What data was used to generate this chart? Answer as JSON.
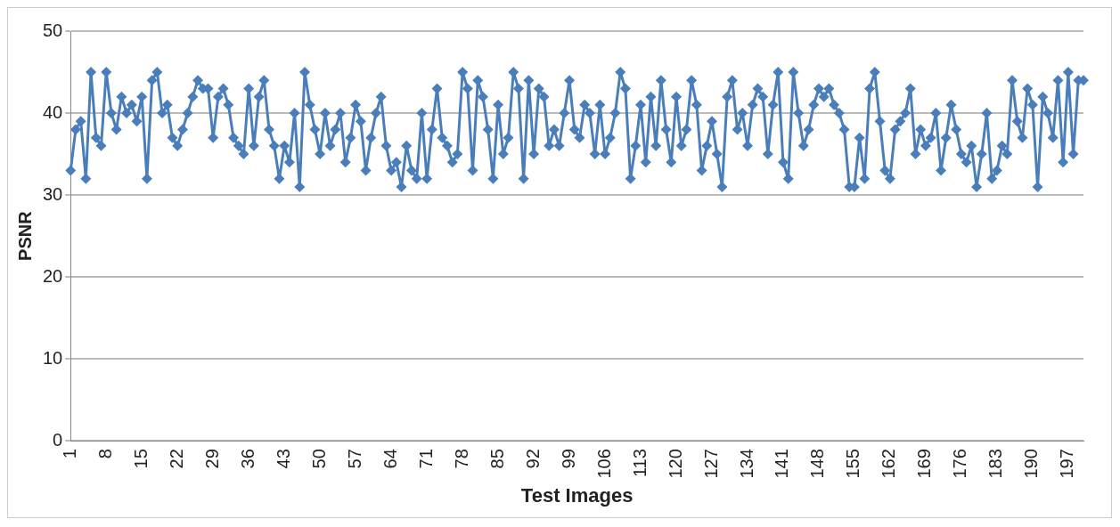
{
  "chart_data": {
    "type": "line",
    "xlabel": "Test Images",
    "ylabel": "PSNR",
    "categories": [
      "1",
      null,
      null,
      null,
      null,
      null,
      null,
      "8",
      null,
      null,
      null,
      null,
      null,
      null,
      "15",
      null,
      null,
      null,
      null,
      null,
      null,
      "22",
      null,
      null,
      null,
      null,
      null,
      null,
      "29",
      null,
      null,
      null,
      null,
      null,
      null,
      "36",
      null,
      null,
      null,
      null,
      null,
      null,
      "43",
      null,
      null,
      null,
      null,
      null,
      null,
      "50",
      null,
      null,
      null,
      null,
      null,
      null,
      "57",
      null,
      null,
      null,
      null,
      null,
      null,
      "64",
      null,
      null,
      null,
      null,
      null,
      null,
      "71",
      null,
      null,
      null,
      null,
      null,
      null,
      "78",
      null,
      null,
      null,
      null,
      null,
      null,
      "85",
      null,
      null,
      null,
      null,
      null,
      null,
      "92",
      null,
      null,
      null,
      null,
      null,
      null,
      "99",
      null,
      null,
      null,
      null,
      null,
      null,
      "106",
      null,
      null,
      null,
      null,
      null,
      null,
      "113",
      null,
      null,
      null,
      null,
      null,
      null,
      "120",
      null,
      null,
      null,
      null,
      null,
      null,
      "127",
      null,
      null,
      null,
      null,
      null,
      null,
      "134",
      null,
      null,
      null,
      null,
      null,
      null,
      "141",
      null,
      null,
      null,
      null,
      null,
      null,
      "148",
      null,
      null,
      null,
      null,
      null,
      null,
      "155",
      null,
      null,
      null,
      null,
      null,
      null,
      "162",
      null,
      null,
      null,
      null,
      null,
      null,
      "169",
      null,
      null,
      null,
      null,
      null,
      null,
      "176",
      null,
      null,
      null,
      null,
      null,
      null,
      "183",
      null,
      null,
      null,
      null,
      null,
      null,
      "190",
      null,
      null,
      null,
      null,
      null,
      null,
      "197",
      null,
      null,
      null
    ],
    "series": [
      {
        "color": "#4a7ebb",
        "values": [
          33,
          38,
          39,
          32,
          45,
          37,
          36,
          45,
          40,
          38,
          42,
          40,
          41,
          39,
          42,
          32,
          44,
          45,
          40,
          41,
          37,
          36,
          38,
          40,
          42,
          44,
          43,
          43,
          37,
          42,
          43,
          41,
          37,
          36,
          35,
          43,
          36,
          42,
          44,
          38,
          36,
          32,
          36,
          34,
          40,
          31,
          45,
          41,
          38,
          35,
          40,
          36,
          38,
          40,
          34,
          37,
          41,
          39,
          33,
          37,
          40,
          42,
          36,
          33,
          34,
          31,
          36,
          33,
          32,
          40,
          32,
          38,
          43,
          37,
          36,
          34,
          35,
          45,
          43,
          33,
          44,
          42,
          38,
          32,
          41,
          35,
          37,
          45,
          43,
          32,
          44,
          35,
          43,
          42,
          36,
          38,
          36,
          40,
          44,
          38,
          37,
          41,
          40,
          35,
          41,
          35,
          37,
          40,
          45,
          43,
          32,
          36,
          41,
          34,
          42,
          36,
          44,
          38,
          34,
          42,
          36,
          38,
          44,
          41,
          33,
          36,
          39,
          35,
          31,
          42,
          44,
          38,
          40,
          36,
          41,
          43,
          42,
          35,
          41,
          45,
          34,
          32,
          45,
          40,
          36,
          38,
          41,
          43,
          42,
          43,
          41,
          40,
          38,
          31,
          31,
          37,
          32,
          43,
          45,
          39,
          33,
          32,
          38,
          39,
          40,
          43,
          35,
          38,
          36,
          37,
          40,
          33,
          37,
          41,
          38,
          35,
          34,
          36,
          31,
          35,
          40,
          32,
          33,
          36,
          35,
          44,
          39,
          37,
          43,
          41,
          31,
          42,
          40,
          37,
          44,
          34,
          45,
          35,
          44,
          44
        ]
      }
    ],
    "ylim": [
      0,
      50
    ],
    "yticks": [
      0,
      10,
      20,
      30,
      40,
      50
    ],
    "grid": "y",
    "legend": false,
    "marker": "diamond",
    "line_style": "solid"
  }
}
